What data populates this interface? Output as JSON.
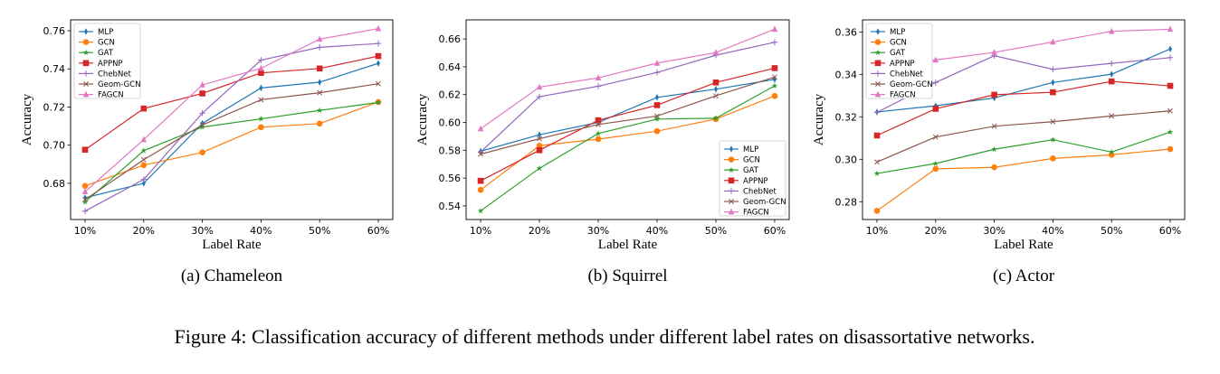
{
  "figure_caption": "Figure 4: Classification accuracy of different methods under different label rates on disassortative networks.",
  "colors": {
    "MLP": "#1f77b4",
    "GCN": "#ff7f0e",
    "GAT": "#2ca02c",
    "APPNP": "#d62728",
    "ChebNet": "#9467bd",
    "Geom-GCN": "#8c564b",
    "FAGCN": "#e377c2"
  },
  "markers": {
    "MLP": "thin-diamond",
    "GCN": "circle",
    "GAT": "star",
    "APPNP": "square",
    "ChebNet": "plus",
    "Geom-GCN": "x",
    "FAGCN": "triangle"
  },
  "chart_data": [
    {
      "type": "line",
      "subcaption": "(a)  Chameleon",
      "xlabel": "Label Rate",
      "ylabel": "Accuracy",
      "categories": [
        "10%",
        "20%",
        "30%",
        "40%",
        "50%",
        "60%"
      ],
      "ylim": [
        0.661,
        0.7657
      ],
      "yticks": [
        "0.68",
        "0.70",
        "0.72",
        "0.74",
        "0.76"
      ],
      "grid": false,
      "legend": "top-left",
      "series": [
        {
          "name": "MLP",
          "values": [
            0.6724,
            0.68,
            0.7114,
            0.73,
            0.733,
            0.7429
          ]
        },
        {
          "name": "GCN",
          "values": [
            0.6786,
            0.6895,
            0.6962,
            0.7094,
            0.7113,
            0.7226
          ]
        },
        {
          "name": "GAT",
          "values": [
            0.6702,
            0.6971,
            0.7095,
            0.7138,
            0.7182,
            0.7224
          ]
        },
        {
          "name": "APPNP",
          "values": [
            0.6976,
            0.7192,
            0.7271,
            0.7379,
            0.7402,
            0.7467
          ]
        },
        {
          "name": "ChebNet",
          "values": [
            0.6654,
            0.682,
            0.7168,
            0.7446,
            0.7513,
            0.7533
          ]
        },
        {
          "name": "Geom-GCN",
          "values": [
            0.6714,
            0.6924,
            0.7106,
            0.7238,
            0.7275,
            0.7322
          ]
        },
        {
          "name": "FAGCN",
          "values": [
            0.6756,
            0.7029,
            0.7316,
            0.7403,
            0.7556,
            0.7611
          ]
        }
      ]
    },
    {
      "type": "line",
      "subcaption": "(b)  Squirrel",
      "xlabel": "Label Rate",
      "ylabel": "Accuracy",
      "categories": [
        "10%",
        "20%",
        "30%",
        "40%",
        "50%",
        "60%"
      ],
      "ylim": [
        0.5302,
        0.6737
      ],
      "yticks": [
        "0.54",
        "0.56",
        "0.58",
        "0.60",
        "0.62",
        "0.64",
        "0.66"
      ],
      "grid": false,
      "legend": "bottom-right",
      "series": [
        {
          "name": "MLP",
          "values": [
            0.5793,
            0.5911,
            0.6,
            0.618,
            0.6239,
            0.6309
          ]
        },
        {
          "name": "GCN",
          "values": [
            0.5515,
            0.5833,
            0.588,
            0.5937,
            0.6024,
            0.619
          ]
        },
        {
          "name": "GAT",
          "values": [
            0.5364,
            0.567,
            0.592,
            0.6024,
            0.603,
            0.6263
          ]
        },
        {
          "name": "APPNP",
          "values": [
            0.558,
            0.58,
            0.6015,
            0.6124,
            0.6287,
            0.639
          ]
        },
        {
          "name": "ChebNet",
          "values": [
            0.5787,
            0.6185,
            0.626,
            0.6359,
            0.6483,
            0.6576
          ]
        },
        {
          "name": "Geom-GCN",
          "values": [
            0.5772,
            0.5883,
            0.5985,
            0.6046,
            0.6191,
            0.6326
          ]
        },
        {
          "name": "FAGCN",
          "values": [
            0.5954,
            0.6254,
            0.632,
            0.6426,
            0.6502,
            0.667
          ]
        }
      ]
    },
    {
      "type": "line",
      "subcaption": "(c)  Actor",
      "xlabel": "Label Rate",
      "ylabel": "Accuracy",
      "categories": [
        "10%",
        "20%",
        "30%",
        "40%",
        "50%",
        "60%"
      ],
      "ylim": [
        0.2716,
        0.3657
      ],
      "yticks": [
        "0.28",
        "0.30",
        "0.32",
        "0.34",
        "0.36"
      ],
      "grid": false,
      "legend": "top-left",
      "series": [
        {
          "name": "MLP",
          "values": [
            0.3223,
            0.3252,
            0.3289,
            0.3362,
            0.3401,
            0.352
          ]
        },
        {
          "name": "GCN",
          "values": [
            0.2757,
            0.2955,
            0.2962,
            0.3004,
            0.3021,
            0.3048
          ]
        },
        {
          "name": "GAT",
          "values": [
            0.2933,
            0.298,
            0.3047,
            0.3092,
            0.3034,
            0.3128
          ]
        },
        {
          "name": "APPNP",
          "values": [
            0.3112,
            0.3238,
            0.3304,
            0.3316,
            0.3367,
            0.3346
          ]
        },
        {
          "name": "ChebNet",
          "values": [
            0.3221,
            0.3362,
            0.3488,
            0.3424,
            0.3452,
            0.3479
          ]
        },
        {
          "name": "Geom-GCN",
          "values": [
            0.2987,
            0.3105,
            0.3156,
            0.3177,
            0.3204,
            0.3228
          ]
        },
        {
          "name": "FAGCN",
          "values": [
            0.3427,
            0.3468,
            0.3504,
            0.3553,
            0.3603,
            0.3613
          ]
        }
      ]
    }
  ]
}
